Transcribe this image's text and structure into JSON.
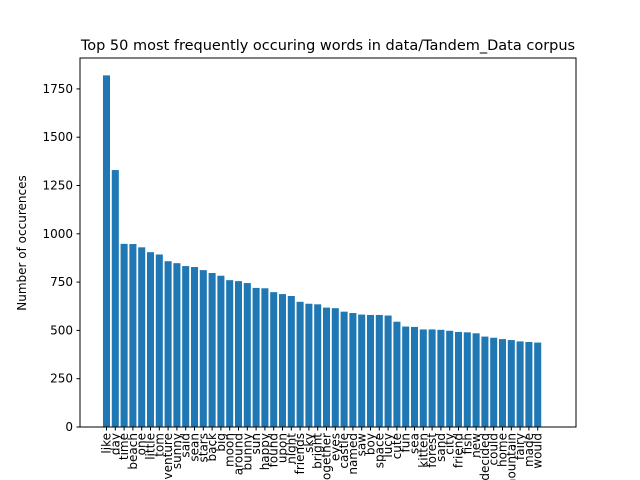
{
  "chart_data": {
    "type": "bar",
    "title": "Top 50 most frequently occuring words in data/Tandem_Data corpus",
    "xlabel": "",
    "ylabel": "Number of occurences",
    "ylim": [
      0,
      1910
    ],
    "yticks": [
      0,
      250,
      500,
      750,
      1000,
      1250,
      1500,
      1750
    ],
    "grid": false,
    "color": "#1f77b4",
    "categories": [
      "like",
      "day",
      "time",
      "beach",
      "one",
      "little",
      "tom",
      "adventure",
      "sunny",
      "said",
      "sean",
      "stars",
      "back",
      "big",
      "moon",
      "around",
      "bunny",
      "sun",
      "happy",
      "found",
      "upon",
      "night",
      "friends",
      "sky",
      "bright",
      "together",
      "eyes",
      "castle",
      "named",
      "saw",
      "boy",
      "space",
      "lucy",
      "cute",
      "fun",
      "sea",
      "kitten",
      "forest",
      "sand",
      "city",
      "friend",
      "fish",
      "new",
      "decided",
      "could",
      "home",
      "mountain",
      "fairy",
      "made",
      "would"
    ],
    "values": [
      1820,
      1330,
      948,
      947,
      930,
      905,
      893,
      858,
      848,
      833,
      828,
      812,
      797,
      783,
      760,
      755,
      745,
      720,
      718,
      698,
      688,
      678,
      648,
      638,
      635,
      618,
      615,
      597,
      590,
      582,
      580,
      580,
      577,
      545,
      520,
      518,
      505,
      505,
      503,
      498,
      492,
      490,
      485,
      468,
      462,
      455,
      450,
      443,
      440,
      437
    ]
  }
}
